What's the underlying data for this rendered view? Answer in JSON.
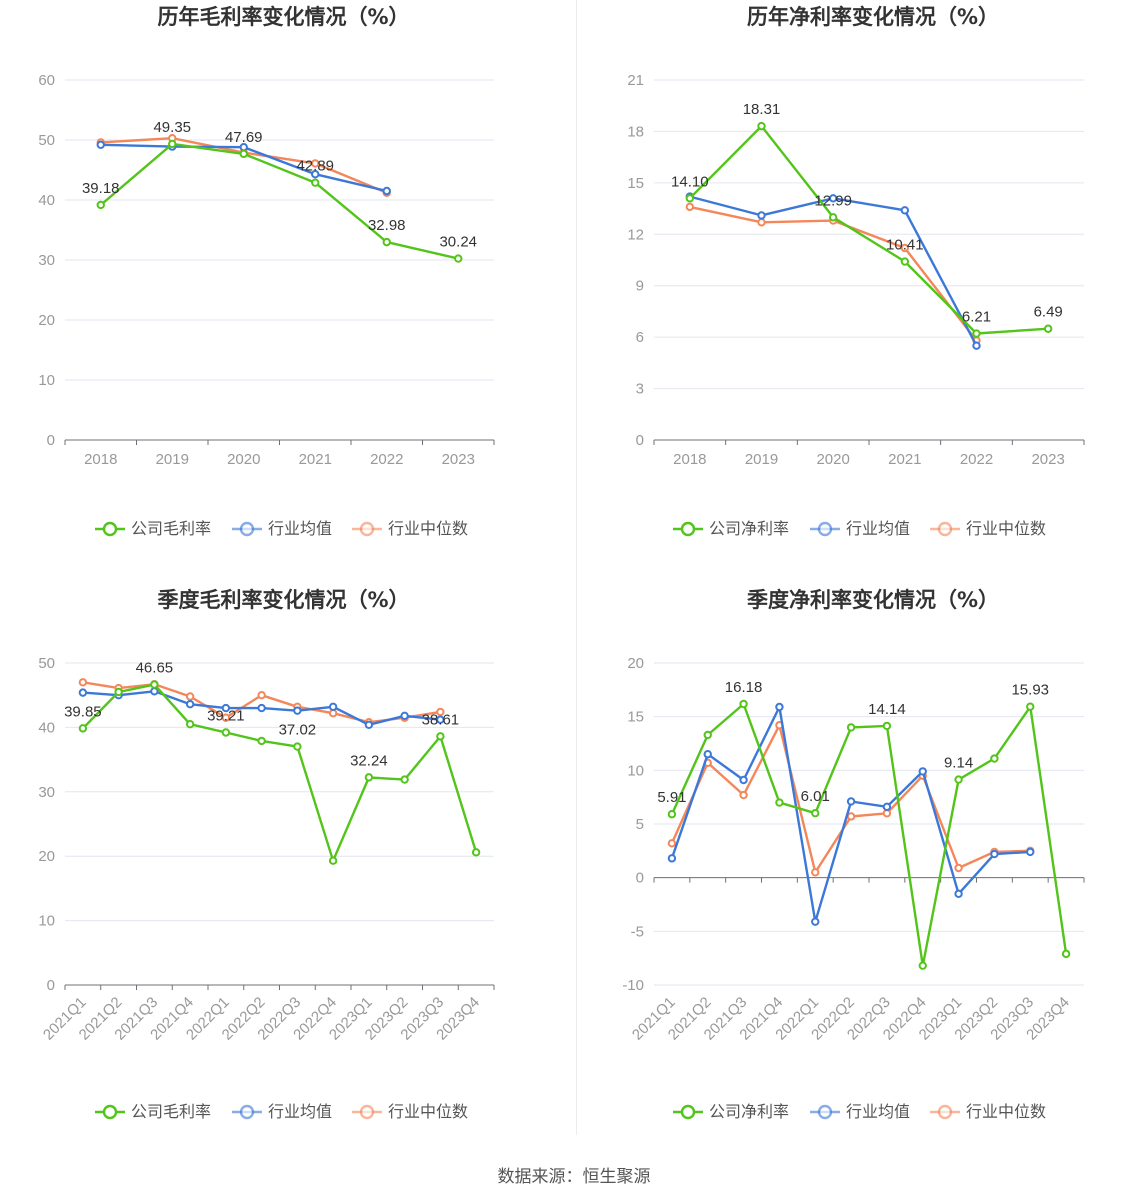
{
  "colors": {
    "company": "#52c41a",
    "avg": "#3c78d8",
    "median": "#f4875a",
    "grid": "#e3e6f0",
    "axis": "#999999",
    "text": "#333333"
  },
  "source": "数据来源：恒生聚源",
  "chart_data": [
    {
      "type": "line",
      "title": "历年毛利率变化情况（%）",
      "categories": [
        "2018",
        "2019",
        "2020",
        "2021",
        "2022",
        "2023"
      ],
      "ylim": [
        0,
        60
      ],
      "yticks": [
        0,
        10,
        20,
        30,
        40,
        50,
        60
      ],
      "series": [
        {
          "name": "公司毛利率",
          "values": [
            39.18,
            49.35,
            47.69,
            42.89,
            32.98,
            30.24
          ]
        },
        {
          "name": "行业均值",
          "values": [
            49.2,
            48.9,
            48.8,
            44.3,
            41.5,
            null
          ]
        },
        {
          "name": "行业中位数",
          "values": [
            49.6,
            50.3,
            47.9,
            46.1,
            41.2,
            null
          ]
        }
      ],
      "labels": [
        "39.18",
        "49.35",
        "47.69",
        "42.89",
        "32.98",
        "30.24"
      ],
      "legend": "bottom"
    },
    {
      "type": "line",
      "title": "历年净利率变化情况（%）",
      "categories": [
        "2018",
        "2019",
        "2020",
        "2021",
        "2022",
        "2023"
      ],
      "ylim": [
        0,
        21
      ],
      "yticks": [
        0,
        3,
        6,
        9,
        12,
        15,
        18,
        21
      ],
      "series": [
        {
          "name": "公司净利率",
          "values": [
            14.1,
            18.31,
            12.99,
            10.41,
            6.21,
            6.49
          ]
        },
        {
          "name": "行业均值",
          "values": [
            14.2,
            13.1,
            14.1,
            13.4,
            5.5,
            null
          ]
        },
        {
          "name": "行业中位数",
          "values": [
            13.6,
            12.7,
            12.8,
            11.2,
            5.8,
            null
          ]
        }
      ],
      "labels": [
        "14.10",
        "18.31",
        "12.99",
        "10.41",
        "6.21",
        "6.49"
      ],
      "legend": "bottom"
    },
    {
      "type": "line",
      "title": "季度毛利率变化情况（%）",
      "categories": [
        "2021Q1",
        "2021Q2",
        "2021Q3",
        "2021Q4",
        "2022Q1",
        "2022Q2",
        "2022Q3",
        "2022Q4",
        "2023Q1",
        "2023Q2",
        "2023Q3",
        "2023Q4"
      ],
      "ylim": [
        0,
        50
      ],
      "yticks": [
        0,
        10,
        20,
        30,
        40,
        50
      ],
      "series": [
        {
          "name": "公司毛利率",
          "values": [
            39.85,
            45.5,
            46.65,
            40.5,
            39.21,
            37.9,
            37.02,
            19.3,
            32.24,
            31.9,
            38.61,
            20.6
          ]
        },
        {
          "name": "行业均值",
          "values": [
            45.4,
            45.0,
            45.6,
            43.6,
            43.0,
            43.0,
            42.6,
            43.2,
            40.4,
            41.8,
            41.2,
            null
          ]
        },
        {
          "name": "行业中位数",
          "values": [
            47.0,
            46.1,
            46.7,
            44.8,
            41.5,
            45.0,
            43.2,
            42.2,
            40.8,
            41.5,
            42.4,
            null
          ]
        }
      ],
      "labels": [
        "39.85",
        "",
        "46.65",
        "",
        "39.21",
        "",
        "37.02",
        "",
        "32.24",
        "",
        "38.61",
        ""
      ],
      "legend": "bottom"
    },
    {
      "type": "line",
      "title": "季度净利率变化情况（%）",
      "categories": [
        "2021Q1",
        "2021Q2",
        "2021Q3",
        "2021Q4",
        "2022Q1",
        "2022Q2",
        "2022Q3",
        "2022Q4",
        "2023Q1",
        "2023Q2",
        "2023Q3",
        "2023Q4"
      ],
      "ylim": [
        -10,
        20
      ],
      "yticks": [
        -10,
        -5,
        0,
        5,
        10,
        15,
        20
      ],
      "series": [
        {
          "name": "公司净利率",
          "values": [
            5.91,
            13.3,
            16.18,
            7.0,
            6.01,
            14.0,
            14.14,
            -8.2,
            9.14,
            11.1,
            15.93,
            -7.1
          ]
        },
        {
          "name": "行业均值",
          "values": [
            1.8,
            11.5,
            9.1,
            15.9,
            -4.1,
            7.1,
            6.6,
            9.9,
            -1.5,
            2.2,
            2.4,
            null
          ]
        },
        {
          "name": "行业中位数",
          "values": [
            3.2,
            10.7,
            7.7,
            14.2,
            0.5,
            5.7,
            6.0,
            9.5,
            0.9,
            2.4,
            2.5,
            null
          ]
        }
      ],
      "labels": [
        "5.91",
        "",
        "16.18",
        "",
        "6.01",
        "",
        "14.14",
        "",
        "9.14",
        "",
        "15.93",
        ""
      ],
      "legend": "bottom"
    }
  ]
}
